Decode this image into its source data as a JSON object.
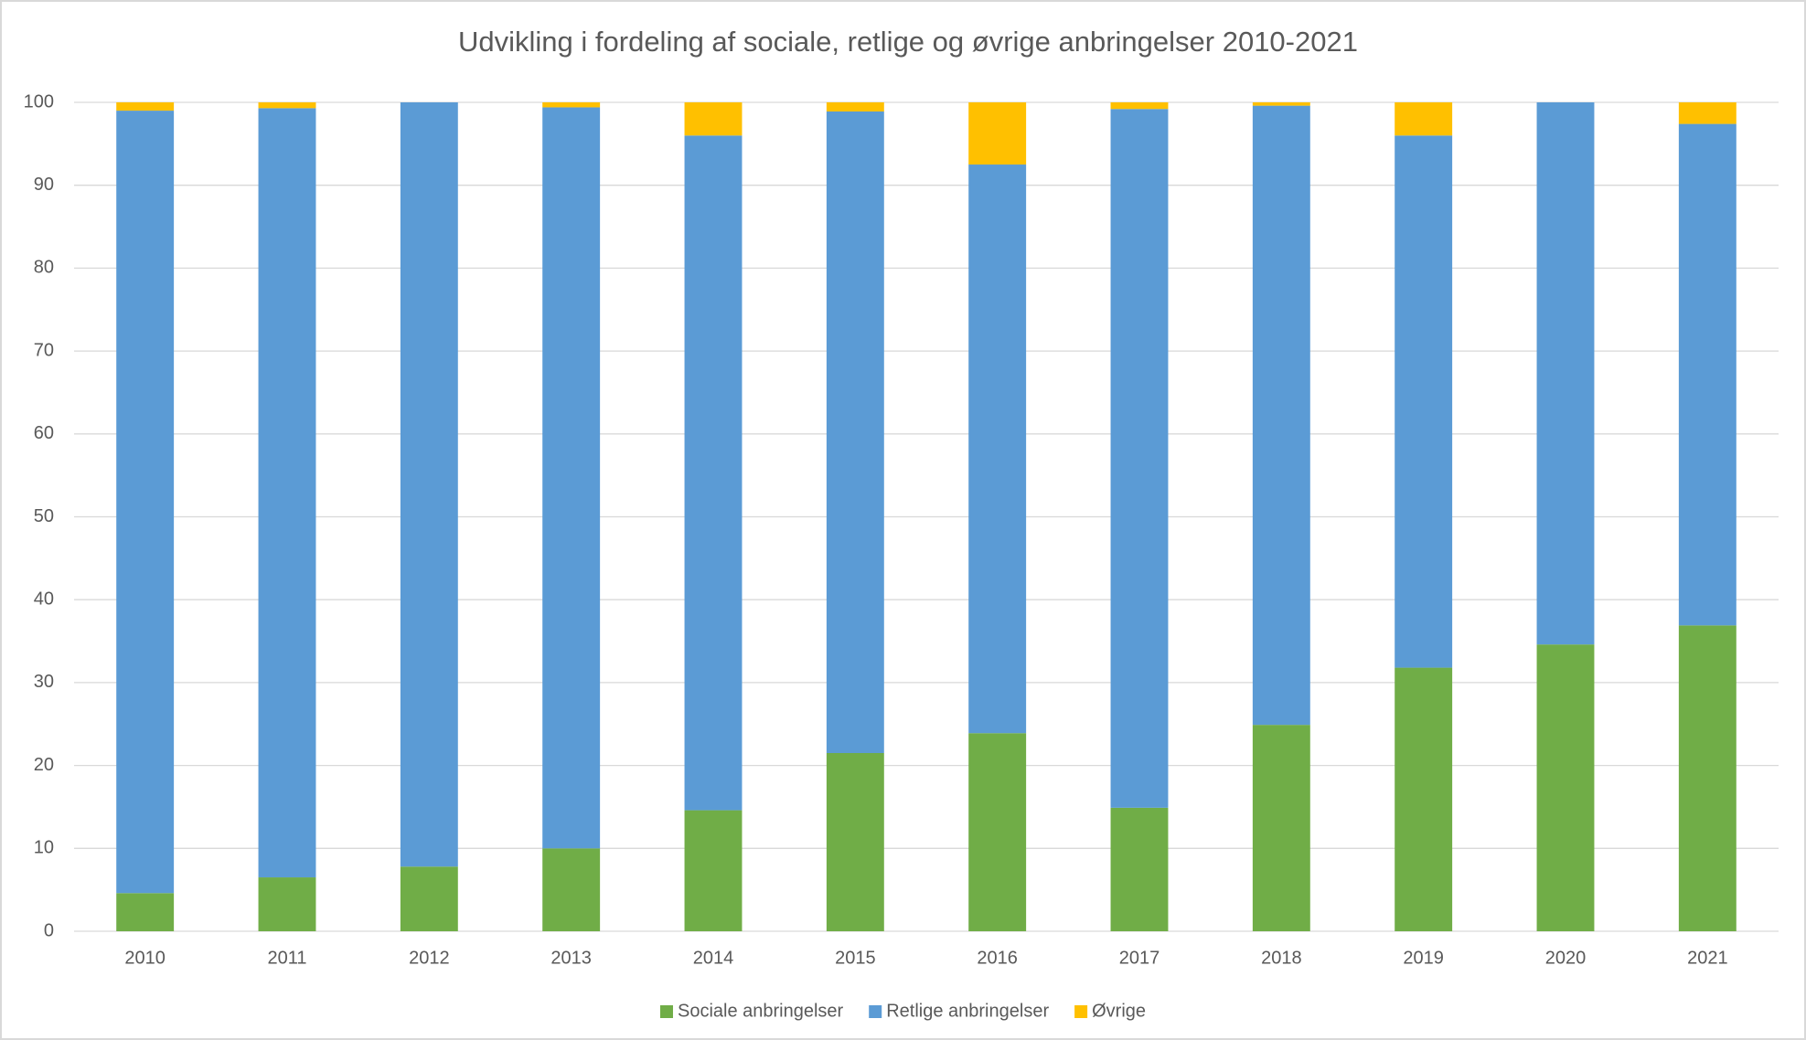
{
  "chart_data": {
    "type": "stacked_bar",
    "title": "Udvikling i fordeling af sociale, retlige og øvrige anbringelser 2010-2021",
    "categories": [
      "2010",
      "2011",
      "2012",
      "2013",
      "2014",
      "2015",
      "2016",
      "2017",
      "2018",
      "2019",
      "2020",
      "2021"
    ],
    "series": [
      {
        "name": "Sociale anbringelser",
        "color": "#70ad47",
        "values": [
          4.6,
          6.5,
          7.8,
          10,
          14.6,
          21.5,
          23.9,
          14.9,
          24.9,
          31.8,
          34.6,
          36.9
        ]
      },
      {
        "name": "Retlige anbringelser",
        "color": "#5b9bd5",
        "values": [
          94.4,
          92.8,
          92.2,
          89.4,
          81.4,
          77.4,
          68.6,
          84.3,
          74.7,
          64.2,
          65.4,
          60.5
        ]
      },
      {
        "name": "Øvrige",
        "color": "#ffc000",
        "values": [
          1.0,
          0.7,
          0,
          0.6,
          4.0,
          1.1,
          7.5,
          0.8,
          0.4,
          4.0,
          0,
          2.6
        ]
      }
    ],
    "ylim": [
      0,
      100
    ],
    "yticks": [
      0,
      10,
      20,
      30,
      40,
      50,
      60,
      70,
      80,
      90,
      100
    ],
    "grid": true,
    "legend": "bottom"
  }
}
